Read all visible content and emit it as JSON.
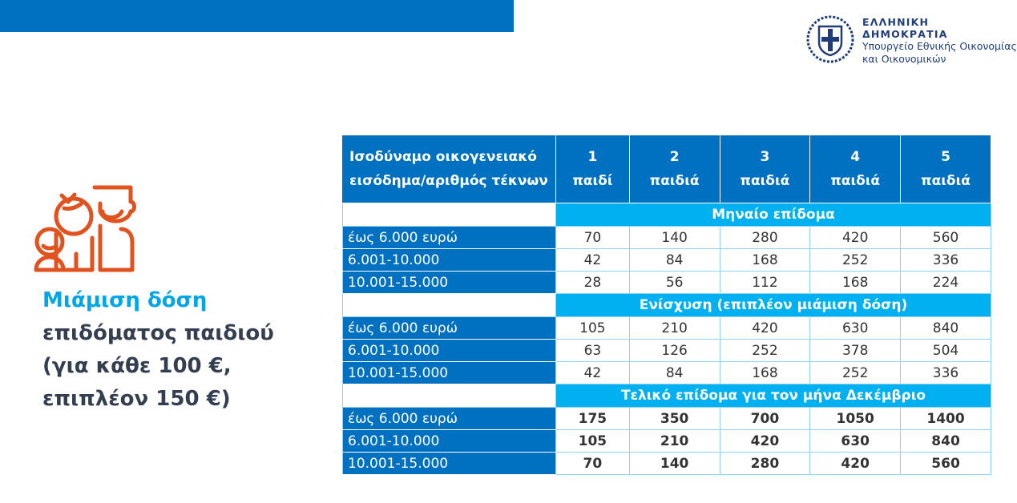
{
  "header": {
    "org_line1": "ΕΛΛΗΝΙΚΗ ΔΗΜΟΚΡΑΤΙΑ",
    "org_line2": "Υπουργείο Εθνικής Οικονομίας",
    "org_line3": "και Οικονομικών",
    "brand_color": "#0070C0"
  },
  "title": {
    "highlight": "Μιάμιση δόση",
    "line2": "επιδόματος παιδιού",
    "line3": "(για κάθε 100 €,",
    "line4": "επιπλέον 150 €)",
    "icon": "family-icon",
    "icon_color": "#E0521E"
  },
  "table": {
    "header": {
      "label_line1": "Ισοδύναμο οικογενειακό",
      "label_line2": "εισόδημα/αριθμός τέκνων",
      "columns": [
        {
          "n": "1",
          "unit": "παιδί"
        },
        {
          "n": "2",
          "unit": "παιδιά"
        },
        {
          "n": "3",
          "unit": "παιδιά"
        },
        {
          "n": "4",
          "unit": "παιδιά"
        },
        {
          "n": "5",
          "unit": "παιδιά"
        }
      ]
    },
    "sections": [
      {
        "title": "Μηναίο επίδομα",
        "rows": [
          {
            "label": "έως 6.000 ευρώ",
            "values": [
              "70",
              "140",
              "280",
              "420",
              "560"
            ]
          },
          {
            "label": "6.001-10.000",
            "values": [
              "42",
              "84",
              "168",
              "252",
              "336"
            ]
          },
          {
            "label": "10.001-15.000",
            "values": [
              "28",
              "56",
              "112",
              "168",
              "224"
            ]
          }
        ]
      },
      {
        "title": "Ενίσχυση (επιπλέον μιάμιση δόση)",
        "rows": [
          {
            "label": "έως 6.000 ευρώ",
            "values": [
              "105",
              "210",
              "420",
              "630",
              "840"
            ]
          },
          {
            "label": "6.001-10.000",
            "values": [
              "63",
              "126",
              "252",
              "378",
              "504"
            ]
          },
          {
            "label": "10.001-15.000",
            "values": [
              "42",
              "84",
              "168",
              "252",
              "336"
            ]
          }
        ]
      },
      {
        "title": "Τελικό επίδομα για τον μήνα Δεκέμβριο",
        "rows": [
          {
            "label": "έως 6.000 ευρώ",
            "values": [
              "175",
              "350",
              "700",
              "1050",
              "1400"
            ]
          },
          {
            "label": "6.001-10.000",
            "values": [
              "105",
              "210",
              "420",
              "630",
              "840"
            ]
          },
          {
            "label": "10.001-15.000",
            "values": [
              "70",
              "140",
              "280",
              "420",
              "560"
            ]
          }
        ]
      }
    ]
  }
}
